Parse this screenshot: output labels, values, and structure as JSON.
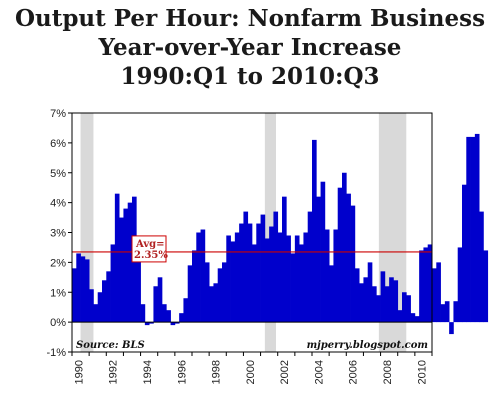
{
  "chart_data": {
    "type": "bar",
    "title_lines": [
      "Output Per Hour: Nonfarm Business",
      "Year-over-Year Increase",
      "1990:Q1 to 2010:Q3"
    ],
    "x_start_year": 1990,
    "x_tick_labels": [
      "1990",
      "1992",
      "1994",
      "1996",
      "1998",
      "2000",
      "2002",
      "2004",
      "2006",
      "2008",
      "2010"
    ],
    "y_tick_labels": [
      "7%",
      "6%",
      "5%",
      "4%",
      "3%",
      "2%",
      "1%",
      "0%",
      "-1%"
    ],
    "ylim": [
      -1,
      7
    ],
    "grid": false,
    "bar_color": "#0000cc",
    "recession_color": "#d9d9d9",
    "recessions": [
      [
        1990.5,
        1991.25
      ],
      [
        2001.25,
        2001.9
      ],
      [
        2007.9,
        2009.5
      ]
    ],
    "average": {
      "value": 2.35,
      "label_line1": "Avg=",
      "label_line2": "2.35%",
      "color": "#cc0000"
    },
    "source_note": "Source: BLS",
    "site_note": "mjperry.blogspot.com",
    "values": [
      1.8,
      2.3,
      2.2,
      2.1,
      1.1,
      0.6,
      1.0,
      1.4,
      1.7,
      2.6,
      4.3,
      3.5,
      3.8,
      4.0,
      4.2,
      2.1,
      0.6,
      -0.1,
      -0.05,
      1.2,
      1.5,
      0.6,
      0.4,
      -0.1,
      -0.05,
      0.3,
      0.8,
      1.9,
      2.4,
      3.0,
      3.1,
      2.0,
      1.2,
      1.3,
      1.8,
      2.0,
      2.9,
      2.7,
      3.0,
      3.3,
      3.7,
      3.3,
      2.6,
      3.3,
      3.6,
      2.8,
      3.2,
      3.7,
      3.0,
      4.2,
      2.9,
      2.3,
      2.9,
      2.6,
      3.0,
      3.7,
      6.1,
      4.2,
      4.7,
      3.1,
      1.9,
      3.1,
      4.5,
      5.0,
      4.3,
      3.9,
      1.8,
      1.3,
      1.5,
      2.0,
      1.2,
      0.9,
      1.7,
      1.2,
      1.5,
      1.4,
      0.4,
      1.0,
      0.9,
      0.3,
      0.2,
      2.4,
      2.5,
      2.6,
      1.8,
      2.0,
      0.6,
      0.7,
      -0.4,
      0.7,
      2.5,
      4.6,
      6.2,
      6.2,
      6.3,
      3.7,
      2.4
    ]
  }
}
